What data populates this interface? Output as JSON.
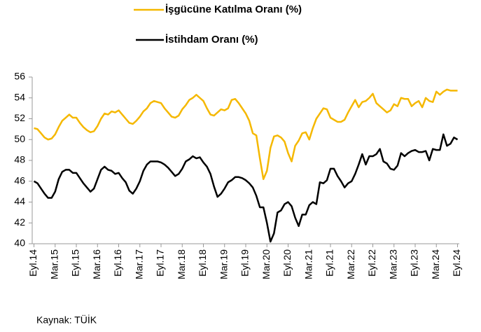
{
  "chart_data": {
    "type": "line",
    "categories": [
      "Eyl.14",
      null,
      null,
      null,
      null,
      null,
      "Mar.15",
      null,
      null,
      null,
      null,
      null,
      "Eyl.15",
      null,
      null,
      null,
      null,
      null,
      "Mar.16",
      null,
      null,
      null,
      null,
      null,
      "Eyl.16",
      null,
      null,
      null,
      null,
      null,
      "Mar.17",
      null,
      null,
      null,
      null,
      null,
      "Eyl.17",
      null,
      null,
      null,
      null,
      null,
      "Mar.18",
      null,
      null,
      null,
      null,
      null,
      "Eyl.18",
      null,
      null,
      null,
      null,
      null,
      "Mar.19",
      null,
      null,
      null,
      null,
      null,
      "Eyl.19",
      null,
      null,
      null,
      null,
      null,
      "Mar.20",
      null,
      null,
      null,
      null,
      null,
      "Eyl.20",
      null,
      null,
      null,
      null,
      null,
      "Mar.21",
      null,
      null,
      null,
      null,
      null,
      "Eyl.21",
      null,
      null,
      null,
      null,
      null,
      "Mar.22",
      null,
      null,
      null,
      null,
      null,
      "Eyl.22",
      null,
      null,
      null,
      null,
      null,
      "Mar.23",
      null,
      null,
      null,
      null,
      null,
      "Eyl.23",
      null,
      null,
      null,
      null,
      null,
      "Mar.24",
      null,
      null,
      null,
      null,
      null,
      "Eyl.24"
    ],
    "series": [
      {
        "name": "İşgücüne Katılma Oranı (%)",
        "color": "#f5b800",
        "values": [
          51.1,
          51.0,
          50.6,
          50.2,
          50.0,
          50.1,
          50.5,
          51.2,
          51.8,
          52.1,
          52.4,
          52.1,
          52.1,
          51.6,
          51.2,
          50.9,
          50.7,
          50.8,
          51.3,
          52.0,
          52.5,
          52.4,
          52.7,
          52.6,
          52.8,
          52.4,
          52.0,
          51.6,
          51.5,
          51.8,
          52.2,
          52.7,
          53.0,
          53.5,
          53.7,
          53.6,
          53.5,
          53.0,
          52.6,
          52.2,
          52.1,
          52.3,
          52.9,
          53.3,
          53.8,
          54.0,
          54.3,
          54.0,
          53.7,
          53.0,
          52.4,
          52.3,
          52.6,
          52.9,
          52.8,
          53.0,
          53.8,
          53.9,
          53.5,
          53.0,
          52.5,
          51.8,
          50.6,
          50.4,
          48.2,
          46.2,
          47.0,
          49.2,
          50.3,
          50.4,
          50.2,
          49.8,
          48.7,
          47.9,
          49.4,
          49.9,
          50.6,
          50.7,
          50.0,
          51.1,
          52.0,
          52.5,
          53.0,
          52.9,
          52.1,
          51.9,
          51.7,
          51.7,
          51.9,
          52.6,
          53.2,
          53.8,
          53.1,
          53.6,
          53.7,
          54.0,
          54.4,
          53.5,
          53.2,
          52.9,
          52.6,
          52.8,
          53.4,
          53.2,
          54.0,
          53.9,
          53.9,
          53.2,
          53.5,
          53.7,
          53.1,
          54.0,
          53.7,
          53.6,
          54.6,
          54.3,
          54.6,
          54.8,
          54.7,
          54.7,
          54.7
        ]
      },
      {
        "name": "İstihdam Oranı (%)",
        "color": "#000000",
        "values": [
          46.0,
          45.8,
          45.3,
          44.8,
          44.4,
          44.4,
          45.0,
          46.2,
          46.9,
          47.1,
          47.1,
          46.8,
          46.8,
          46.3,
          45.8,
          45.4,
          45.0,
          45.3,
          46.2,
          47.1,
          47.4,
          47.1,
          47.0,
          46.7,
          46.8,
          46.3,
          45.9,
          45.1,
          44.8,
          45.3,
          46.0,
          47.0,
          47.6,
          47.9,
          47.9,
          47.9,
          47.8,
          47.6,
          47.3,
          46.9,
          46.5,
          46.7,
          47.2,
          47.9,
          48.1,
          48.4,
          48.2,
          48.3,
          47.8,
          47.4,
          46.7,
          45.5,
          44.5,
          44.8,
          45.3,
          45.9,
          46.1,
          46.4,
          46.4,
          46.3,
          46.1,
          45.8,
          45.4,
          44.6,
          43.5,
          43.5,
          42.0,
          40.2,
          41.0,
          43.0,
          43.2,
          43.8,
          44.0,
          43.6,
          42.5,
          41.7,
          42.8,
          42.8,
          43.7,
          44.0,
          43.8,
          45.9,
          45.8,
          46.1,
          47.2,
          47.2,
          46.5,
          46.0,
          45.4,
          45.8,
          46.0,
          46.7,
          47.6,
          48.6,
          47.6,
          48.4,
          48.4,
          48.6,
          49.1,
          47.9,
          47.7,
          47.2,
          47.1,
          47.5,
          48.7,
          48.4,
          48.7,
          48.9,
          49.0,
          48.8,
          48.8,
          48.9,
          48.0,
          49.1,
          49.0,
          49.0,
          50.5,
          49.4,
          49.6,
          50.2,
          50.0
        ]
      }
    ],
    "ylim": [
      40,
      56
    ],
    "yticks": [
      40,
      42,
      44,
      46,
      48,
      50,
      52,
      54,
      56
    ],
    "grid": false,
    "legend": "top",
    "source": "Kaynak: TÜİK"
  }
}
